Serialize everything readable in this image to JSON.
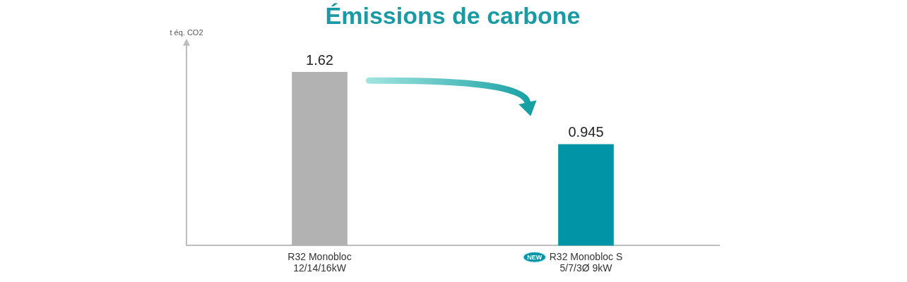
{
  "chart_data": {
    "type": "bar",
    "title": "Émissions de carbone",
    "ylabel": "t éq. CO2",
    "categories": [
      "R32 Monobloc",
      "R32 Monobloc S"
    ],
    "category_subtitles": [
      "12/14/16kW",
      "5/7/3Ø 9kW"
    ],
    "values": [
      1.62,
      0.945
    ],
    "colors": [
      "#b2b2b2",
      "#0094a6"
    ],
    "ylim": [
      0,
      1.88
    ],
    "grid": false,
    "data_labels": true,
    "tick_labels": "x",
    "annotations": [
      {
        "text": "NEW",
        "category": "R32 Monobloc S"
      }
    ]
  }
}
